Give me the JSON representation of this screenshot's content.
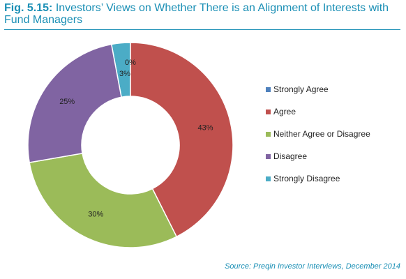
{
  "figure": {
    "label": "Fig. 5.15:",
    "title": "Investors’ Views on Whether There is an Alignment of Interests with Fund Managers",
    "source": "Source: Preqin Investor Interviews, December 2014"
  },
  "colors": {
    "accent": "#1a8fb5",
    "strongly_agree": "#4f81bd",
    "agree": "#c0504d",
    "neither": "#9bbb59",
    "disagree": "#8064a2",
    "strongly_disagree": "#4bacc6"
  },
  "chart_data": {
    "type": "pie",
    "donut": true,
    "legend_position": "right",
    "slices": [
      {
        "label": "Strongly Agree",
        "value": 0,
        "value_label": "0%",
        "color": "#4f81bd"
      },
      {
        "label": "Agree",
        "value": 43,
        "value_label": "43%",
        "color": "#c0504d"
      },
      {
        "label": "Neither Agree or Disagree",
        "value": 30,
        "value_label": "30%",
        "color": "#9bbb59"
      },
      {
        "label": "Disagree",
        "value": 25,
        "value_label": "25%",
        "color": "#8064a2"
      },
      {
        "label": "Strongly Disagree",
        "value": 3,
        "value_label": "3%",
        "color": "#4bacc6"
      }
    ]
  }
}
